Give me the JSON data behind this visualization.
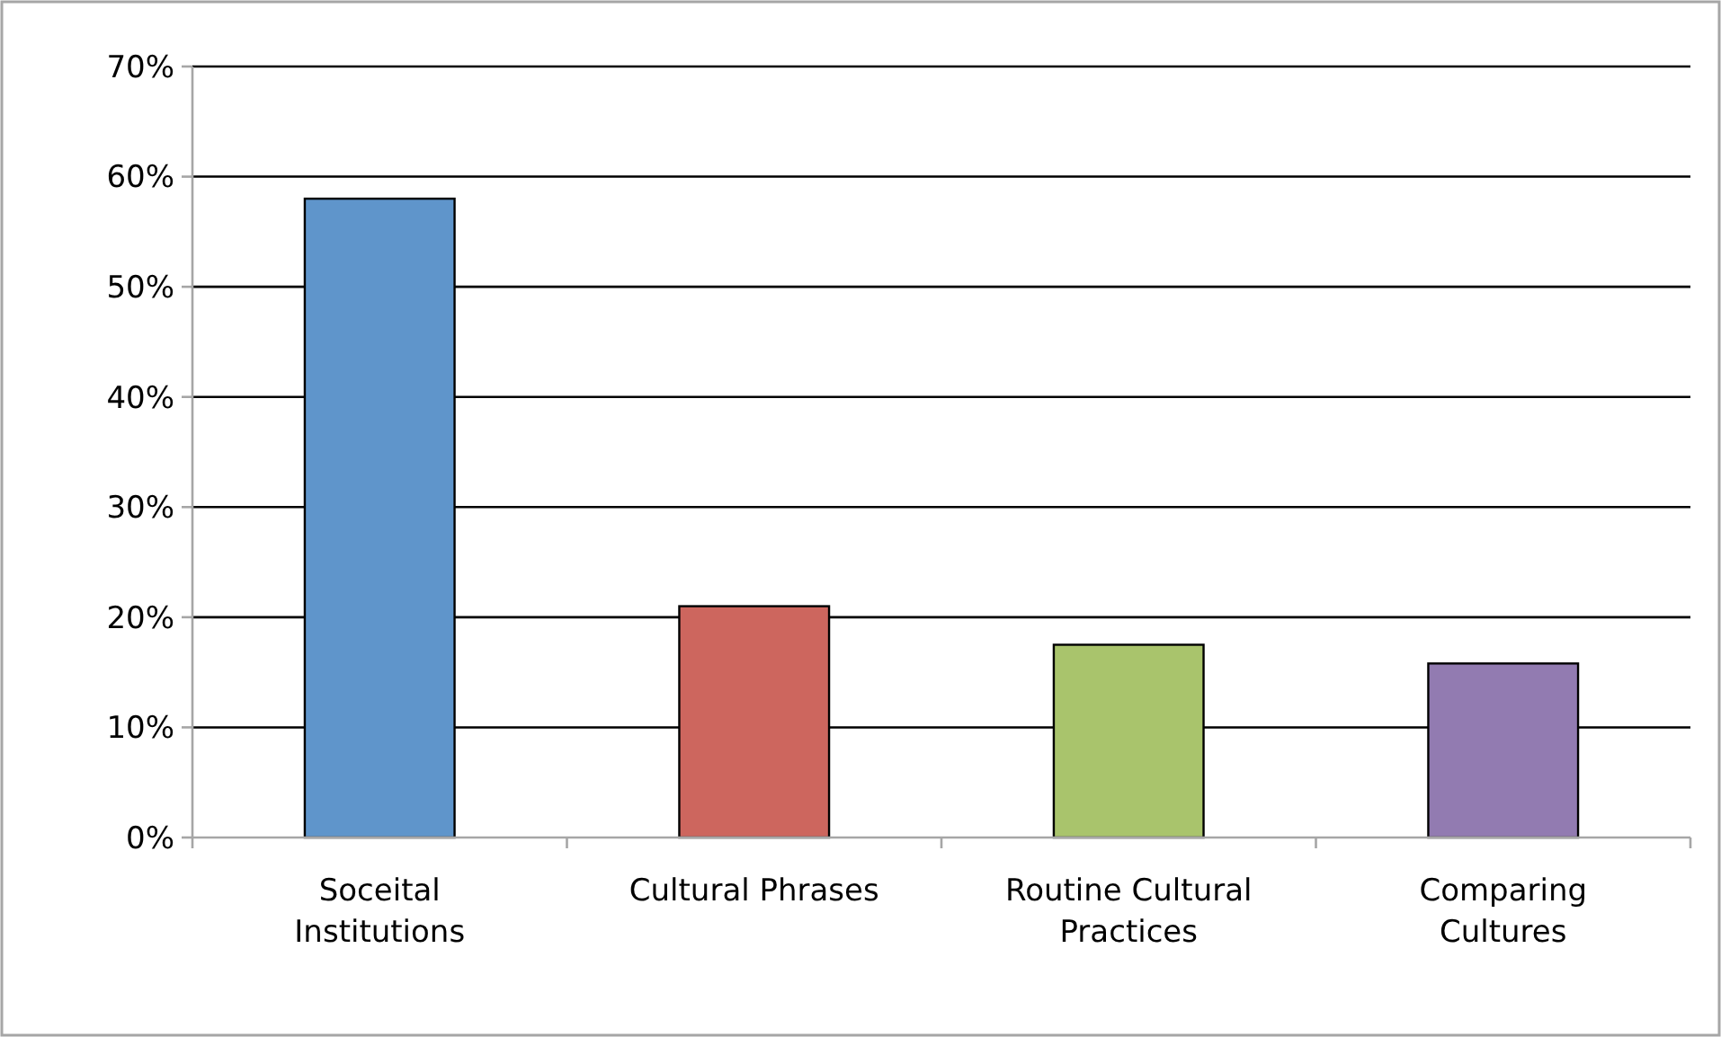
{
  "chart_data": {
    "type": "bar",
    "categories": [
      "Soceital Institutions",
      "Cultural Phrases",
      "Routine Cultural Practices",
      "Comparing Cultures"
    ],
    "values": [
      58,
      21,
      17.5,
      15.8
    ],
    "colors": [
      "#5f95cb",
      "#cd665e",
      "#a9c46c",
      "#927bb1"
    ],
    "ylim": [
      0,
      70
    ],
    "yticks": [
      {
        "value": 0,
        "label": "0%"
      },
      {
        "value": 10,
        "label": "10%"
      },
      {
        "value": 20,
        "label": "20%"
      },
      {
        "value": 30,
        "label": "30%"
      },
      {
        "value": 40,
        "label": "40%"
      },
      {
        "value": 50,
        "label": "50%"
      },
      {
        "value": 60,
        "label": "60%"
      },
      {
        "value": 70,
        "label": "70%"
      }
    ],
    "grid": "y"
  }
}
